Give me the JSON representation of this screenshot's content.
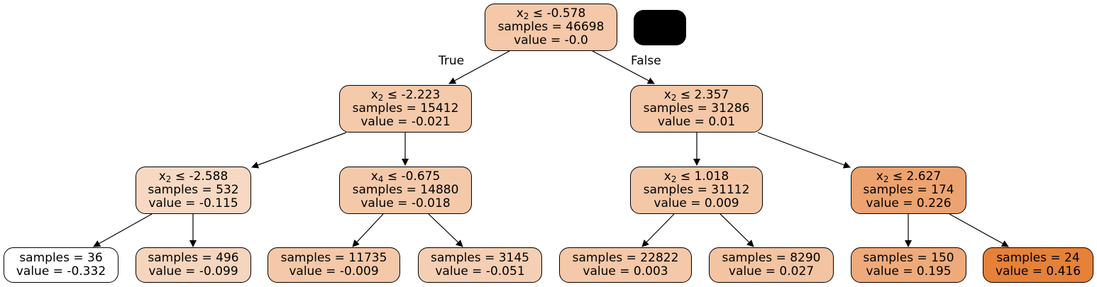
{
  "legend_color": "#000000",
  "edge_labels": {
    "true_label": "True",
    "false_label": "False"
  },
  "nodes": {
    "n0": {
      "feature": "x",
      "sub": "2",
      "op": "≤",
      "threshold": "-0.578",
      "samples": "samples = 46698",
      "value": "value = -0.0",
      "fill": "#f4c8a9"
    },
    "n1": {
      "feature": "x",
      "sub": "2",
      "op": "≤",
      "threshold": "-2.223",
      "samples": "samples = 15412",
      "value": "value = -0.021",
      "fill": "#f4caab"
    },
    "n2": {
      "feature": "x",
      "sub": "2",
      "op": "≤",
      "threshold": "2.357",
      "samples": "samples = 31286",
      "value": "value = 0.01",
      "fill": "#f4c7a6"
    },
    "n3": {
      "feature": "x",
      "sub": "2",
      "op": "≤",
      "threshold": "-2.588",
      "samples": "samples = 532",
      "value": "value = -0.115",
      "fill": "#f7d9c3"
    },
    "n4": {
      "feature": "x",
      "sub": "4",
      "op": "≤",
      "threshold": "-0.675",
      "samples": "samples = 14880",
      "value": "value = -0.018",
      "fill": "#f4c9aa"
    },
    "n5": {
      "feature": "x",
      "sub": "2",
      "op": "≤",
      "threshold": "1.018",
      "samples": "samples = 31112",
      "value": "value = 0.009",
      "fill": "#f4c7a7"
    },
    "n6": {
      "feature": "x",
      "sub": "2",
      "op": "≤",
      "threshold": "2.627",
      "samples": "samples = 174",
      "value": "value = 0.226",
      "fill": "#eda36f"
    },
    "n7": {
      "samples": "samples = 36",
      "value": "value = -0.332",
      "fill": "#ffffff"
    },
    "n8": {
      "samples": "samples = 496",
      "value": "value = -0.099",
      "fill": "#f6d5be"
    },
    "n9": {
      "samples": "samples = 11735",
      "value": "value = -0.009",
      "fill": "#f4c8a8"
    },
    "n10": {
      "samples": "samples = 3145",
      "value": "value = -0.051",
      "fill": "#f5cfb4"
    },
    "n11": {
      "samples": "samples = 22822",
      "value": "value = 0.003",
      "fill": "#f4c8a8"
    },
    "n12": {
      "samples": "samples = 8290",
      "value": "value = 0.027",
      "fill": "#f3c4a2"
    },
    "n13": {
      "samples": "samples = 150",
      "value": "value = 0.195",
      "fill": "#eeaa7a"
    },
    "n14": {
      "samples": "samples = 24",
      "value": "value = 0.416",
      "fill": "#e58139"
    }
  }
}
